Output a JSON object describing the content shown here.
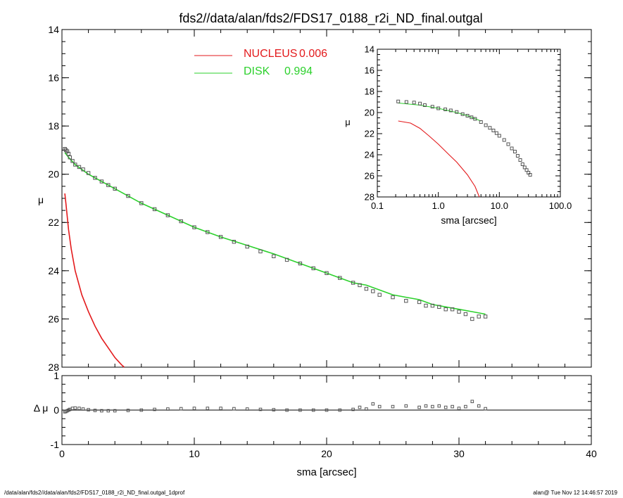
{
  "title": "fds2//data/alan/fds2/FDS17_0188_r2i_ND_final.outgal",
  "footer": {
    "left": "/data/alan/fds2//data/alan/fds2/FDS17_0188_r2i_ND_final.outgal_1dprof",
    "right": "alan@  Tue Nov 12 14:46:57 2019"
  },
  "colors": {
    "nucleus": "#e31a1c",
    "disk": "#2cd12c",
    "data": "#555555",
    "axes": "#000000"
  },
  "chart_data": [
    {
      "id": "main",
      "type": "scatter",
      "title": "fds2//data/alan/fds2/FDS17_0188_r2i_ND_final.outgal",
      "xlabel": "",
      "ylabel": "μ",
      "xlim": [
        0,
        40
      ],
      "ylim": [
        28,
        14
      ],
      "xticks": [
        "0",
        "10",
        "20",
        "30",
        "40"
      ],
      "yticks": [
        "14",
        "16",
        "18",
        "20",
        "22",
        "24",
        "26",
        "28"
      ],
      "legend": [
        {
          "label": "NUCLEUS",
          "value": "0.006",
          "color": "#e31a1c"
        },
        {
          "label": "DISK",
          "value": "0.994",
          "color": "#2cd12c"
        }
      ],
      "series": [
        {
          "name": "NUCLEUS",
          "kind": "line",
          "color": "#e31a1c",
          "x": [
            0.22,
            0.3,
            0.5,
            0.7,
            1.0,
            1.5,
            2.0,
            2.5,
            3.0,
            3.5,
            4.0,
            4.5,
            4.7
          ],
          "y": [
            20.8,
            21.2,
            22.3,
            23.1,
            24.0,
            25.0,
            25.7,
            26.3,
            26.8,
            27.2,
            27.6,
            27.9,
            28.0
          ]
        },
        {
          "name": "DISK",
          "kind": "line",
          "color": "#2cd12c",
          "x": [
            0.22,
            0.5,
            1.0,
            2.0,
            4.0,
            6.0,
            8.0,
            10.0,
            12.0,
            14.0,
            16.0,
            18.0,
            20.0,
            21.0,
            22.0,
            23.0,
            24.0,
            25.0,
            26.0,
            27.0,
            28.0,
            29.0,
            30.0,
            31.0,
            32.0
          ],
          "y": [
            19.1,
            19.3,
            19.6,
            20.0,
            20.6,
            21.2,
            21.7,
            22.2,
            22.6,
            22.95,
            23.3,
            23.7,
            24.1,
            24.3,
            24.5,
            24.6,
            24.8,
            25.0,
            25.1,
            25.2,
            25.4,
            25.5,
            25.6,
            25.7,
            25.8
          ]
        },
        {
          "name": "data",
          "kind": "points",
          "x": [
            0.22,
            0.3,
            0.4,
            0.5,
            0.6,
            0.8,
            1.0,
            1.3,
            1.6,
            2.0,
            2.5,
            3.0,
            3.5,
            4.0,
            5.0,
            6.0,
            7.0,
            8.0,
            9.0,
            10.0,
            11.0,
            12.0,
            13.0,
            14.0,
            15.0,
            16.0,
            17.0,
            18.0,
            19.0,
            20.0,
            21.0,
            22.0,
            22.5,
            23.0,
            23.5,
            24.0,
            25.0,
            26.0,
            27.0,
            27.5,
            28.0,
            28.5,
            29.0,
            29.5,
            30.0,
            30.5,
            31.0,
            31.5,
            32.0
          ],
          "y": [
            18.95,
            19.0,
            19.05,
            19.15,
            19.3,
            19.45,
            19.6,
            19.7,
            19.8,
            19.95,
            20.15,
            20.3,
            20.45,
            20.6,
            20.9,
            21.2,
            21.45,
            21.7,
            21.95,
            22.2,
            22.4,
            22.6,
            22.8,
            23.0,
            23.2,
            23.4,
            23.55,
            23.7,
            23.9,
            24.1,
            24.3,
            24.5,
            24.6,
            24.75,
            24.85,
            25.0,
            25.1,
            25.25,
            25.3,
            25.45,
            25.45,
            25.5,
            25.6,
            25.6,
            25.7,
            25.8,
            26.0,
            25.9,
            25.9
          ]
        }
      ]
    },
    {
      "id": "residual",
      "type": "scatter",
      "xlabel": "sma [arcsec]",
      "ylabel": "Δ μ",
      "xlim": [
        0,
        40
      ],
      "ylim": [
        -1,
        1
      ],
      "xticks": [
        "0",
        "10",
        "20",
        "30",
        "40"
      ],
      "yticks": [
        "-1",
        "0",
        "1"
      ],
      "series": [
        {
          "name": "residual",
          "kind": "points",
          "x": [
            0.22,
            0.3,
            0.4,
            0.5,
            0.6,
            0.8,
            1.0,
            1.3,
            1.6,
            2.0,
            2.5,
            3.0,
            3.5,
            4.0,
            5.0,
            6.0,
            7.0,
            8.0,
            9.0,
            10.0,
            11.0,
            12.0,
            13.0,
            14.0,
            15.0,
            16.0,
            17.0,
            18.0,
            19.0,
            20.0,
            21.0,
            22.0,
            22.5,
            23.0,
            23.5,
            24.0,
            25.0,
            26.0,
            27.0,
            27.5,
            28.0,
            28.5,
            29.0,
            29.5,
            30.0,
            30.5,
            31.0,
            31.5,
            32.0
          ],
          "y": [
            -0.05,
            -0.04,
            -0.02,
            0.0,
            0.02,
            0.05,
            0.06,
            0.05,
            0.03,
            0.01,
            -0.01,
            -0.02,
            -0.02,
            -0.02,
            -0.01,
            0.0,
            0.02,
            0.03,
            0.04,
            0.05,
            0.05,
            0.05,
            0.04,
            0.03,
            0.02,
            0.01,
            0.0,
            0.0,
            0.0,
            0.0,
            0.0,
            0.02,
            0.08,
            0.03,
            0.18,
            0.1,
            0.1,
            0.12,
            0.08,
            0.12,
            0.1,
            0.12,
            0.08,
            0.1,
            0.05,
            0.1,
            0.25,
            0.12,
            0.04
          ]
        }
      ]
    },
    {
      "id": "inset",
      "type": "scatter",
      "xlabel": "sma [arcsec]",
      "ylabel": "μ",
      "xscale": "log",
      "xlim": [
        0.1,
        100
      ],
      "ylim": [
        28,
        14
      ],
      "xticks": [
        "0.1",
        "1.0",
        "10.0",
        "100.0"
      ],
      "yticks": [
        "14",
        "16",
        "18",
        "20",
        "22",
        "24",
        "26",
        "28"
      ],
      "series": [
        {
          "name": "NUCLEUS",
          "kind": "line",
          "color": "#e31a1c",
          "x": [
            0.22,
            0.35,
            0.5,
            0.7,
            1.0,
            1.5,
            2.0,
            3.0,
            4.0,
            4.7
          ],
          "y": [
            20.8,
            21.0,
            21.5,
            22.2,
            23.0,
            24.0,
            24.7,
            25.9,
            27.0,
            28.0
          ]
        },
        {
          "name": "DISK",
          "kind": "line",
          "color": "#2cd12c",
          "x": [
            0.22,
            0.5,
            1.0,
            2.0,
            3.0,
            5.0
          ],
          "y": [
            19.1,
            19.3,
            19.6,
            20.0,
            20.3,
            20.8
          ]
        },
        {
          "name": "data",
          "kind": "points",
          "x": [
            0.22,
            0.3,
            0.4,
            0.5,
            0.6,
            0.8,
            1.0,
            1.3,
            1.6,
            2.0,
            2.5,
            3.0,
            3.5,
            4.0,
            5.0,
            6.0,
            7.0,
            8.0,
            9.0,
            10.0,
            12.0,
            14.0,
            16.0,
            18.0,
            20.0,
            22.0,
            24.0,
            26.0,
            28.0,
            30.0,
            32.0
          ],
          "y": [
            18.95,
            19.0,
            19.05,
            19.15,
            19.3,
            19.45,
            19.6,
            19.7,
            19.8,
            19.95,
            20.15,
            20.3,
            20.45,
            20.6,
            20.9,
            21.2,
            21.45,
            21.7,
            21.95,
            22.2,
            22.6,
            23.0,
            23.4,
            23.7,
            24.1,
            24.5,
            24.9,
            25.2,
            25.45,
            25.7,
            25.9
          ]
        }
      ]
    }
  ]
}
